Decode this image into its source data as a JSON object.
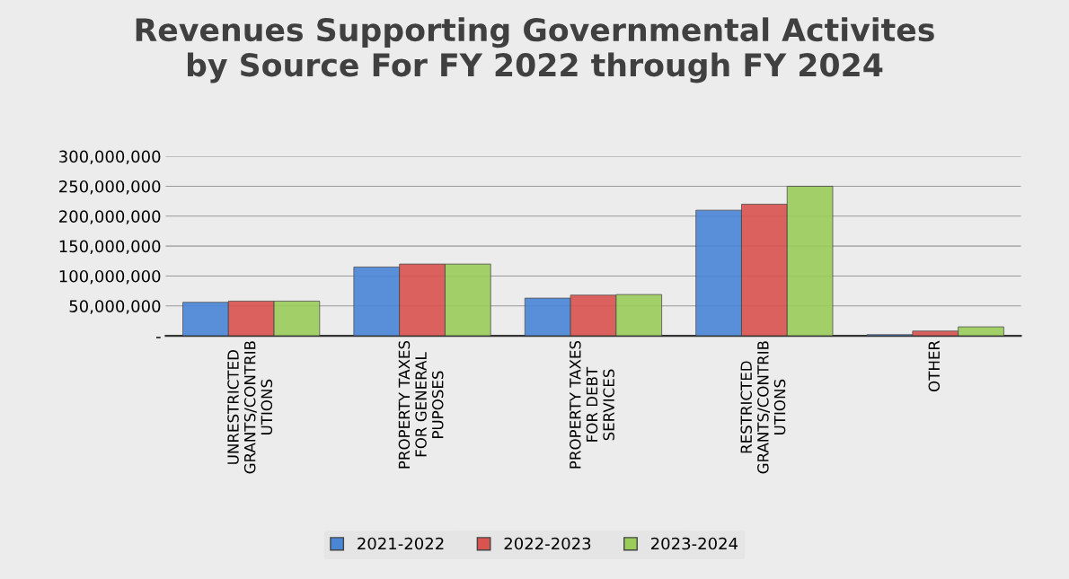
{
  "chart_data": {
    "type": "bar",
    "title": "Revenues Supporting Governmental Activites\nby Source For FY 2022 through FY 2024",
    "categories": [
      "UNRESTRICTED\nGRANTS/CONTRIB\nUTIONS",
      "PROPERTY TAXES\nFOR GENERAL\nPUPOSES",
      "PROPERTY TAXES\nFOR DEBT\nSERVICES",
      "RESTRICTED\nGRANTS/CONTRIB\nUTIONS",
      "OTHER"
    ],
    "series": [
      {
        "name": "2021-2022",
        "color": "#4a86d6",
        "values": [
          56000000,
          115000000,
          63000000,
          210000000,
          2000000
        ]
      },
      {
        "name": "2022-2023",
        "color": "#d9534f",
        "values": [
          58000000,
          120000000,
          68000000,
          220000000,
          8000000
        ]
      },
      {
        "name": "2023-2024",
        "color": "#9bcc5a",
        "values": [
          58000000,
          120000000,
          69000000,
          250000000,
          15000000
        ]
      }
    ],
    "ylim": [
      0,
      300000000
    ],
    "yticks": [
      {
        "value": 0,
        "label": "-"
      },
      {
        "value": 50000000,
        "label": "50,000,000"
      },
      {
        "value": 100000000,
        "label": "100,000,000"
      },
      {
        "value": 150000000,
        "label": "150,000,000"
      },
      {
        "value": 200000000,
        "label": "200,000,000"
      },
      {
        "value": 250000000,
        "label": "250,000,000"
      },
      {
        "value": 300000000,
        "label": "300,000,000"
      }
    ],
    "grid": "y",
    "legend": "bottom"
  }
}
